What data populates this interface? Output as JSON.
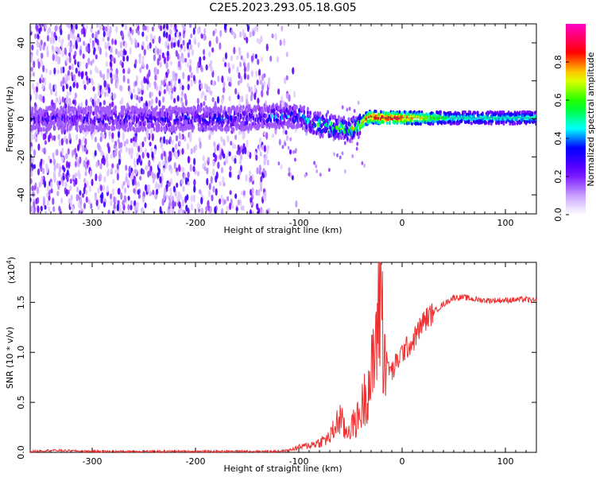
{
  "title": "C2E5.2023.293.05.18.G05",
  "chart_data": [
    {
      "type": "heatmap",
      "xlabel": "Height of straight line (km)",
      "ylabel": "Frequency (Hz)",
      "xlim": [
        -360,
        130
      ],
      "ylim": [
        -50,
        50
      ],
      "xticks": [
        -300,
        -200,
        -100,
        0,
        100
      ],
      "yticks": [
        -40,
        -20,
        0,
        20,
        40
      ],
      "colorbar": {
        "label": "Normalized spectral amplitude",
        "range": [
          0.0,
          1.0
        ],
        "ticks": [
          "0.0",
          "0.2",
          "0.4",
          "0.6",
          "0.8"
        ],
        "colors": [
          "#ffffff",
          "#6a00ff",
          "#0000ff",
          "#00ffff",
          "#00ff00",
          "#ffff00",
          "#ff0000",
          "#ff00ff"
        ]
      },
      "signal_track": {
        "x": [
          -360,
          -300,
          -250,
          -200,
          -150,
          -120,
          -100,
          -90,
          -80,
          -70,
          -60,
          -50,
          -45,
          -40,
          -35,
          -30,
          -20,
          -10,
          0,
          50,
          100,
          130
        ],
        "frequency": [
          0,
          0,
          0,
          0,
          0.5,
          1.5,
          1.5,
          -1,
          -3,
          -4,
          -5,
          -6,
          -5,
          -3,
          0,
          1,
          0.5,
          0.5,
          0.5,
          0.5,
          0.5,
          0.5
        ],
        "peak_amplitude": [
          0.3,
          0.35,
          0.35,
          0.4,
          0.4,
          0.45,
          0.5,
          0.6,
          0.65,
          0.7,
          0.75,
          0.8,
          0.85,
          0.8,
          0.85,
          0.9,
          0.95,
          0.95,
          0.9,
          0.5,
          0.5,
          0.5
        ]
      },
      "noise_extent_x": [
        -360,
        -120
      ]
    },
    {
      "type": "line",
      "xlabel": "Height of straight line (km)",
      "ylabel": "SNR (10 * v/v)",
      "y_multiplier": "(x10",
      "y_multiplier_exp": "4",
      "y_multiplier_close": ")",
      "xlim": [
        -360,
        130
      ],
      "ylim": [
        0,
        1.9
      ],
      "xticks": [
        -300,
        -200,
        -100,
        0,
        100
      ],
      "yticks": [
        "0.0",
        "0.5",
        "1.0",
        "1.5"
      ],
      "color": "#f03030",
      "series": [
        {
          "x": [
            -360,
            -340,
            -300,
            -250,
            -200,
            -150,
            -120,
            -110,
            -100,
            -90,
            -80,
            -70,
            -65,
            -60,
            -55,
            -50,
            -45,
            -40,
            -35,
            -30,
            -27,
            -25,
            -22,
            -20,
            -18,
            -15,
            -10,
            -5,
            0,
            5,
            10,
            20,
            30,
            40,
            50,
            60,
            70,
            80,
            100,
            120,
            130
          ],
          "y": [
            0.01,
            0.02,
            0.01,
            0.01,
            0.01,
            0.01,
            0.01,
            0.02,
            0.05,
            0.07,
            0.1,
            0.15,
            0.25,
            0.35,
            0.2,
            0.25,
            0.3,
            0.4,
            0.6,
            0.75,
            0.9,
            1.2,
            1.4,
            1.5,
            1.1,
            0.9,
            0.8,
            0.9,
            1.0,
            1.05,
            1.1,
            1.3,
            1.4,
            1.48,
            1.55,
            1.55,
            1.53,
            1.52,
            1.52,
            1.53,
            1.51
          ]
        }
      ]
    }
  ]
}
